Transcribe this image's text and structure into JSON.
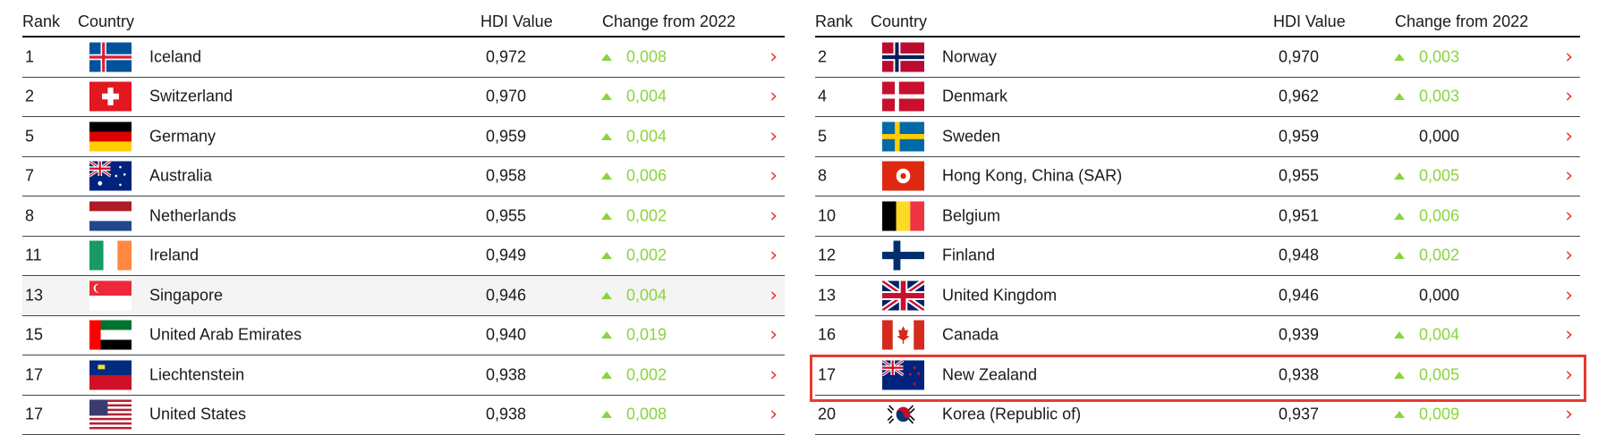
{
  "headers": {
    "rank": "Rank",
    "country": "Country",
    "hdi": "HDI Value",
    "change": "Change from 2022"
  },
  "colors": {
    "up": "#8ad43c",
    "arrow": "#e8392f",
    "highlight": "#e8392f"
  },
  "left_table": [
    {
      "rank": "1",
      "flag": "iceland",
      "country": "Iceland",
      "hdi": "0,972",
      "change": "0,008",
      "trend": "up"
    },
    {
      "rank": "2",
      "flag": "switzerland",
      "country": "Switzerland",
      "hdi": "0,970",
      "change": "0,004",
      "trend": "up"
    },
    {
      "rank": "5",
      "flag": "germany",
      "country": "Germany",
      "hdi": "0,959",
      "change": "0,004",
      "trend": "up"
    },
    {
      "rank": "7",
      "flag": "australia",
      "country": "Australia",
      "hdi": "0,958",
      "change": "0,006",
      "trend": "up"
    },
    {
      "rank": "8",
      "flag": "netherlands",
      "country": "Netherlands",
      "hdi": "0,955",
      "change": "0,002",
      "trend": "up"
    },
    {
      "rank": "11",
      "flag": "ireland",
      "country": "Ireland",
      "hdi": "0,949",
      "change": "0,002",
      "trend": "up"
    },
    {
      "rank": "13",
      "flag": "singapore",
      "country": "Singapore",
      "hdi": "0,946",
      "change": "0,004",
      "trend": "up",
      "hovered": true
    },
    {
      "rank": "15",
      "flag": "uae",
      "country": "United Arab Emirates",
      "hdi": "0,940",
      "change": "0,019",
      "trend": "up"
    },
    {
      "rank": "17",
      "flag": "liechtenstein",
      "country": "Liechtenstein",
      "hdi": "0,938",
      "change": "0,002",
      "trend": "up"
    },
    {
      "rank": "17",
      "flag": "usa",
      "country": "United States",
      "hdi": "0,938",
      "change": "0,008",
      "trend": "up"
    }
  ],
  "right_table": [
    {
      "rank": "2",
      "flag": "norway",
      "country": "Norway",
      "hdi": "0,970",
      "change": "0,003",
      "trend": "up"
    },
    {
      "rank": "4",
      "flag": "denmark",
      "country": "Denmark",
      "hdi": "0,962",
      "change": "0,003",
      "trend": "up"
    },
    {
      "rank": "5",
      "flag": "sweden",
      "country": "Sweden",
      "hdi": "0,959",
      "change": "0,000",
      "trend": "none"
    },
    {
      "rank": "8",
      "flag": "hongkong",
      "country": "Hong Kong, China (SAR)",
      "hdi": "0,955",
      "change": "0,005",
      "trend": "up"
    },
    {
      "rank": "10",
      "flag": "belgium",
      "country": "Belgium",
      "hdi": "0,951",
      "change": "0,006",
      "trend": "up"
    },
    {
      "rank": "12",
      "flag": "finland",
      "country": "Finland",
      "hdi": "0,948",
      "change": "0,002",
      "trend": "up"
    },
    {
      "rank": "13",
      "flag": "uk",
      "country": "United Kingdom",
      "hdi": "0,946",
      "change": "0,000",
      "trend": "none"
    },
    {
      "rank": "16",
      "flag": "canada",
      "country": "Canada",
      "hdi": "0,939",
      "change": "0,004",
      "trend": "up"
    },
    {
      "rank": "17",
      "flag": "newzealand",
      "country": "New Zealand",
      "hdi": "0,938",
      "change": "0,005",
      "trend": "up",
      "highlighted": true
    },
    {
      "rank": "20",
      "flag": "korea",
      "country": "Korea (Republic of)",
      "hdi": "0,937",
      "change": "0,009",
      "trend": "up"
    }
  ]
}
